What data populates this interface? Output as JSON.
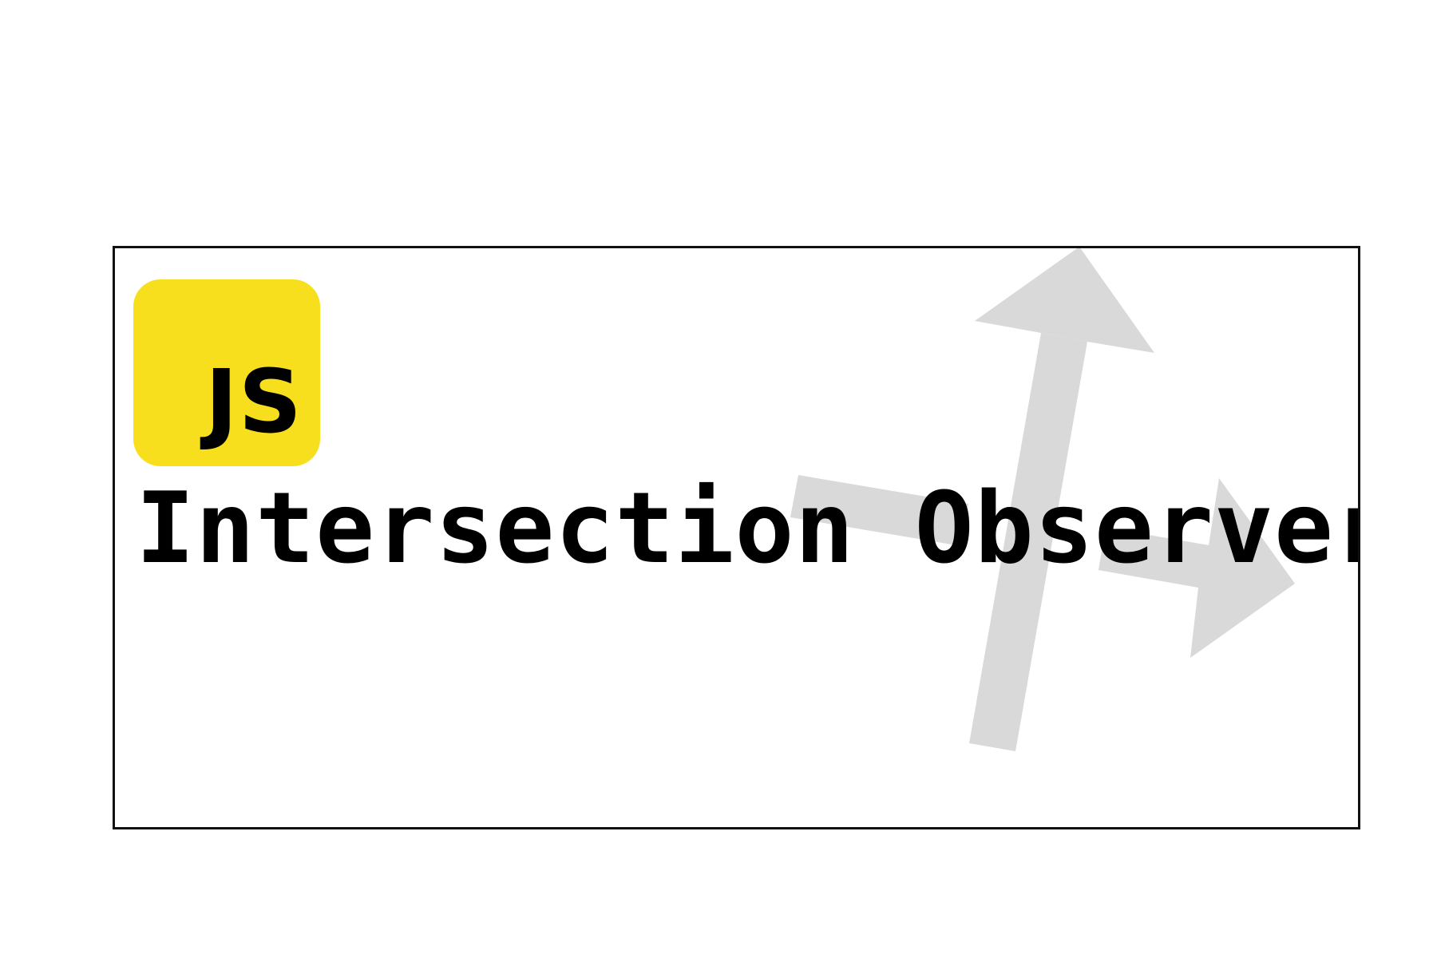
{
  "logo": {
    "text": "JS",
    "background_color": "#f7df1e",
    "text_color": "#000000"
  },
  "title": "Intersection Observer",
  "decoration": {
    "arrow_color": "#d9d9d9",
    "arrow_icon": "up-arrow-icon, right-arrow-icon"
  },
  "frame": {
    "border_color": "#111111"
  }
}
